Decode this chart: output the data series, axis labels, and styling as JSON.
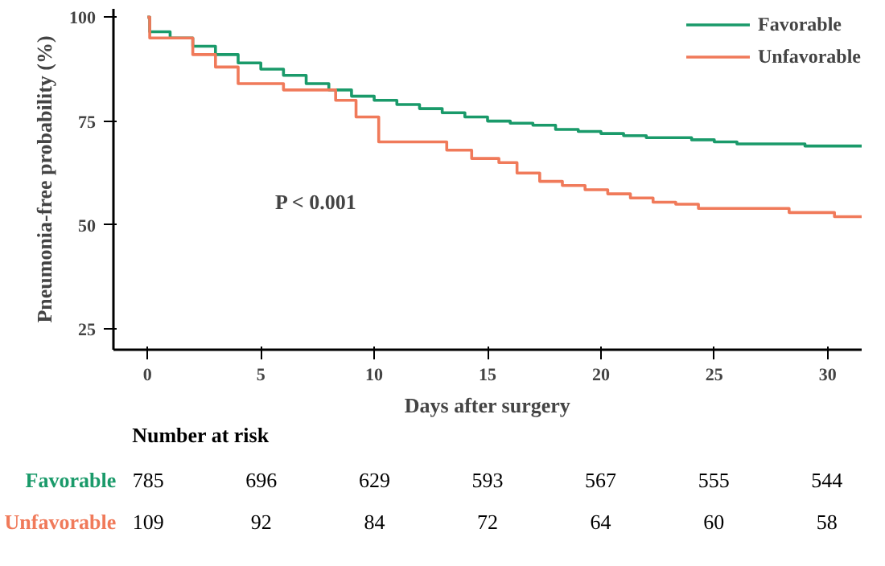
{
  "chart_data": [
    {
      "type": "step",
      "xlabel": "Days after surgery",
      "ylabel": "Pneumonia-free probability (%)",
      "xlim": [
        -1.5,
        31.5
      ],
      "ylim": [
        20,
        102
      ],
      "xticks": [
        0,
        5,
        10,
        15,
        20,
        25,
        30
      ],
      "yticks": [
        25,
        50,
        75,
        100
      ],
      "grid": false,
      "legend": "top right",
      "marker": "none",
      "line_style": "solid",
      "annotations": [
        "P < 0.001"
      ],
      "series": [
        {
          "name": "Favorable",
          "color": "#1a9a6a",
          "x": [
            0,
            0.1,
            1,
            2,
            3,
            4,
            5,
            6,
            7,
            8,
            9,
            10,
            11,
            12,
            13,
            14,
            15,
            16,
            17,
            18,
            19,
            20,
            21,
            22,
            24,
            25,
            26,
            29,
            31.5
          ],
          "values": [
            100,
            96.5,
            95,
            93,
            91,
            89,
            87.5,
            86,
            84,
            82.5,
            81,
            80,
            79,
            78,
            77,
            76,
            75,
            74.5,
            74,
            73,
            72.5,
            72,
            71.5,
            71,
            70.5,
            70,
            69.5,
            69,
            69
          ]
        },
        {
          "name": "Unfavorable",
          "color": "#f07a5a",
          "x": [
            0,
            0.1,
            2,
            3,
            4,
            6,
            8.3,
            9.2,
            10.2,
            13.2,
            14.3,
            15.5,
            16.3,
            17.3,
            18.3,
            19.3,
            20.3,
            21.3,
            22.3,
            23.3,
            24.3,
            28.3,
            30.3,
            31.5
          ],
          "values": [
            100,
            95,
            91,
            88,
            84,
            82.5,
            80,
            76,
            70,
            68,
            66,
            65,
            62.5,
            60.5,
            59.5,
            58.5,
            57.5,
            56.5,
            55.5,
            55,
            54,
            53,
            52,
            52
          ]
        }
      ]
    },
    {
      "type": "other",
      "title": "Number at risk",
      "annotations": [
        "Favorable",
        "785",
        "696",
        "629",
        "593",
        "567",
        "555",
        "544",
        "Unfavorable",
        "109",
        "92",
        "84",
        "72",
        "64",
        "60",
        "58"
      ]
    }
  ]
}
